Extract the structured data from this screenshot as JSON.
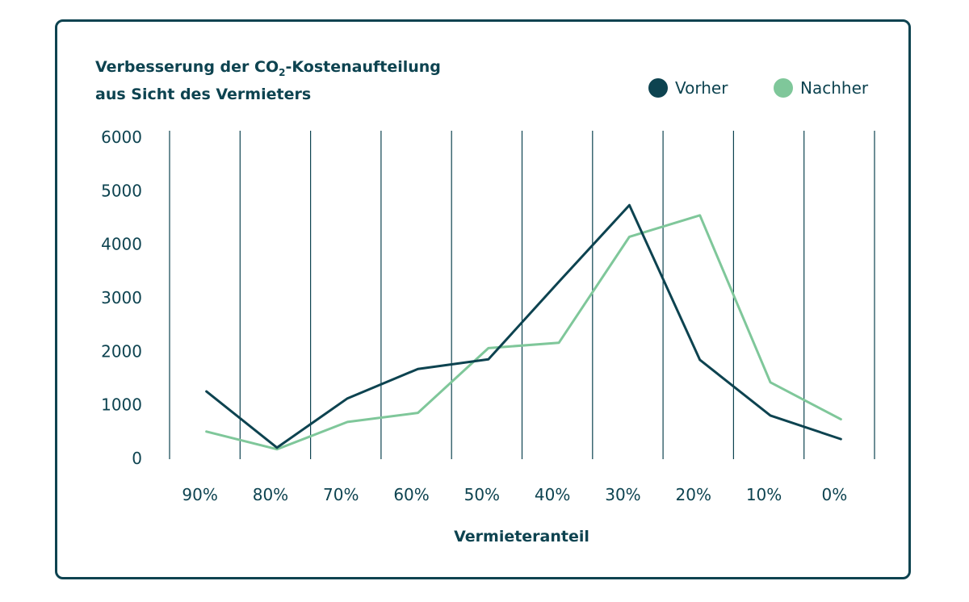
{
  "chart_data": {
    "type": "line",
    "title_line1_prefix": "Verbesserung der CO",
    "title_subscript": "2",
    "title_line1_suffix": "-Kostenaufteilung",
    "title_line2": "aus Sicht des Vermieters",
    "xlabel": "Vermieteranteil",
    "ylabel": "",
    "ylim": [
      0,
      6000
    ],
    "yticks": [
      0,
      1000,
      2000,
      3000,
      4000,
      5000,
      6000
    ],
    "categories": [
      "90%",
      "80%",
      "70%",
      "60%",
      "50%",
      "40%",
      "30%",
      "20%",
      "10%",
      "0%"
    ],
    "grid": "vertical",
    "legend_position": "top-right",
    "series": [
      {
        "name": "Vorher",
        "color": "#0d4350",
        "values": [
          1250,
          200,
          1120,
          1670,
          1850,
          3300,
          4730,
          1840,
          800,
          360
        ]
      },
      {
        "name": "Nachher",
        "color": "#7fc79a",
        "values": [
          500,
          170,
          680,
          850,
          2060,
          2160,
          4140,
          4540,
          1420,
          730
        ]
      }
    ]
  },
  "colors": {
    "primary": "#0d4350",
    "accent": "#7fc79a",
    "border": "#0d4350"
  }
}
